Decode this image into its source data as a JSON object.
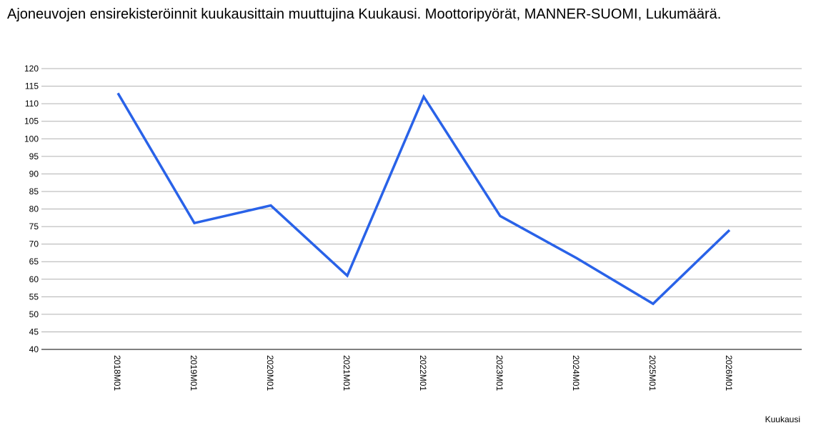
{
  "chart_data": {
    "type": "line",
    "title": "Ajoneuvojen ensirekisteröinnit kuukausittain muuttujina Kuukausi. Moottoripyörät, MANNER-SUOMI, Lukumäärä.",
    "xlabel": "Kuukausi",
    "ylabel": "",
    "categories": [
      "2018M01",
      "2019M01",
      "2020M01",
      "2021M01",
      "2022M01",
      "2023M01",
      "2024M01",
      "2025M01",
      "2026M01"
    ],
    "series": [
      {
        "values": [
          113,
          76,
          81,
          61,
          112,
          78,
          66,
          53,
          74
        ],
        "color": "#2962e8"
      }
    ],
    "ylim": [
      40,
      120
    ],
    "yticks": [
      40,
      45,
      50,
      55,
      60,
      65,
      70,
      75,
      80,
      85,
      90,
      95,
      100,
      105,
      110,
      115,
      120
    ],
    "grid": true,
    "legend": "none",
    "colors": {
      "grid": "#b0b0b0",
      "axis": "#000000",
      "line": "#2962e8"
    }
  }
}
